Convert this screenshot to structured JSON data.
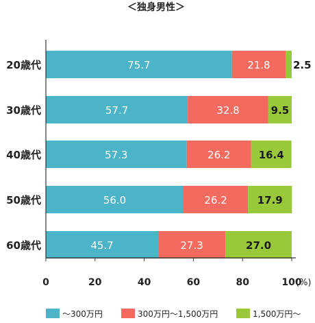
{
  "chart_data": {
    "type": "bar",
    "orientation": "horizontal",
    "stacked": true,
    "title": "＜独身男性＞",
    "categories": [
      "20歳代",
      "30歳代",
      "40歳代",
      "50歳代",
      "60歳代"
    ],
    "series": [
      {
        "name": "～300万円",
        "color": "#4bb4c8",
        "values": [
          75.7,
          57.7,
          57.3,
          56.0,
          45.7
        ]
      },
      {
        "name": "300万円～1,500万円",
        "color": "#f56a5e",
        "values": [
          21.8,
          32.8,
          26.2,
          26.2,
          27.3
        ]
      },
      {
        "name": "1,500万円～",
        "color": "#99c93a",
        "values": [
          2.5,
          9.5,
          16.4,
          17.9,
          27.0
        ]
      }
    ],
    "value_labels": [
      [
        "75.7",
        "21.8",
        "2.5"
      ],
      [
        "57.7",
        "32.8",
        "9.5"
      ],
      [
        "57.3",
        "26.2",
        "16.4"
      ],
      [
        "56.0",
        "26.2",
        "17.9"
      ],
      [
        "45.7",
        "27.3",
        "27.0"
      ]
    ],
    "xlim": [
      0,
      100
    ],
    "x_ticks": [
      "0",
      "20",
      "40",
      "60",
      "80",
      "100"
    ],
    "x_unit": "(%)",
    "grid": false,
    "legend_position": "bottom"
  }
}
